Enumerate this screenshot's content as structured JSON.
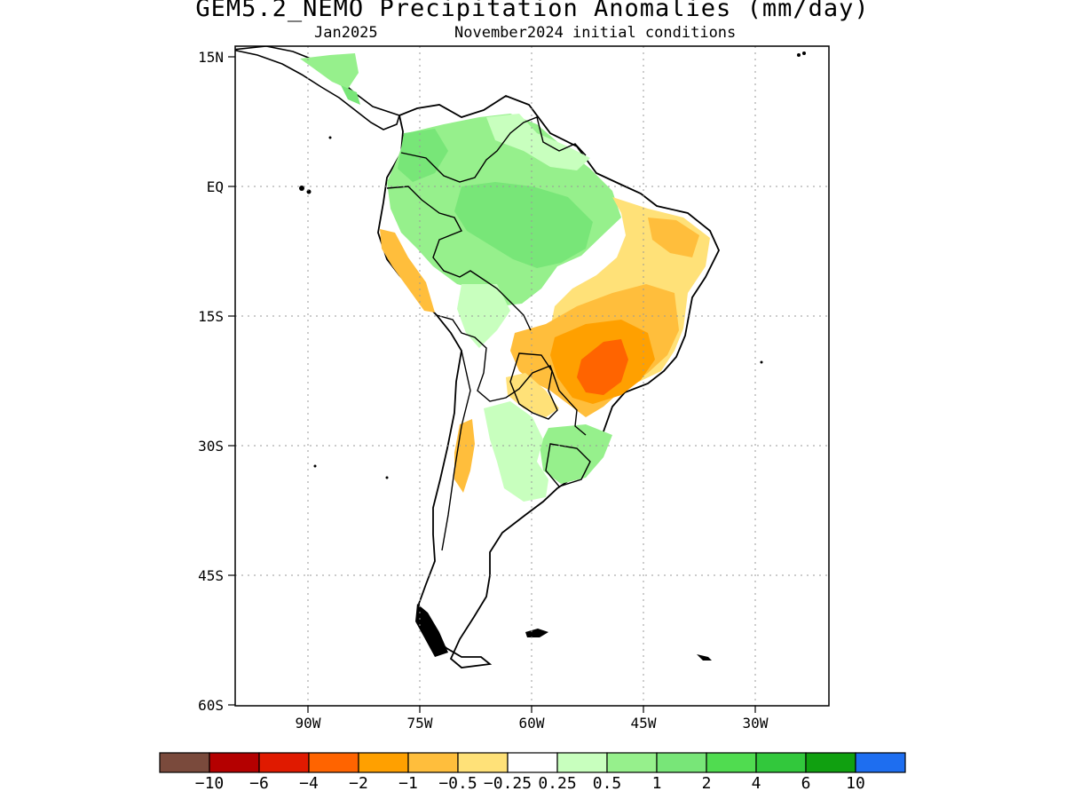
{
  "title": "GEM5.2_NEMO Precipitation Anomalies (mm/day)",
  "subtitle_left": "Jan2025",
  "subtitle_right": "November2024 initial conditions",
  "map": {
    "lat_ticks": [
      "15N",
      "EQ",
      "15S",
      "30S",
      "45S",
      "60S"
    ],
    "lon_ticks": [
      "90W",
      "75W",
      "60W",
      "45W",
      "30W"
    ],
    "grid": "dotted"
  },
  "colorbar": {
    "labels": [
      "-10",
      "-6",
      "-4",
      "-2",
      "-1",
      "-0.5",
      "-0.25",
      "0.25",
      "0.5",
      "1",
      "2",
      "4",
      "6",
      "10"
    ],
    "colors": [
      "#7a4a3c",
      "#b40000",
      "#e01a00",
      "#ff6400",
      "#ffa000",
      "#ffbe3c",
      "#ffe178",
      "#ffffff",
      "#c8ffbe",
      "#96f08c",
      "#78e678",
      "#50dc50",
      "#32c83c",
      "#10a010",
      "#1e6ef0"
    ]
  }
}
